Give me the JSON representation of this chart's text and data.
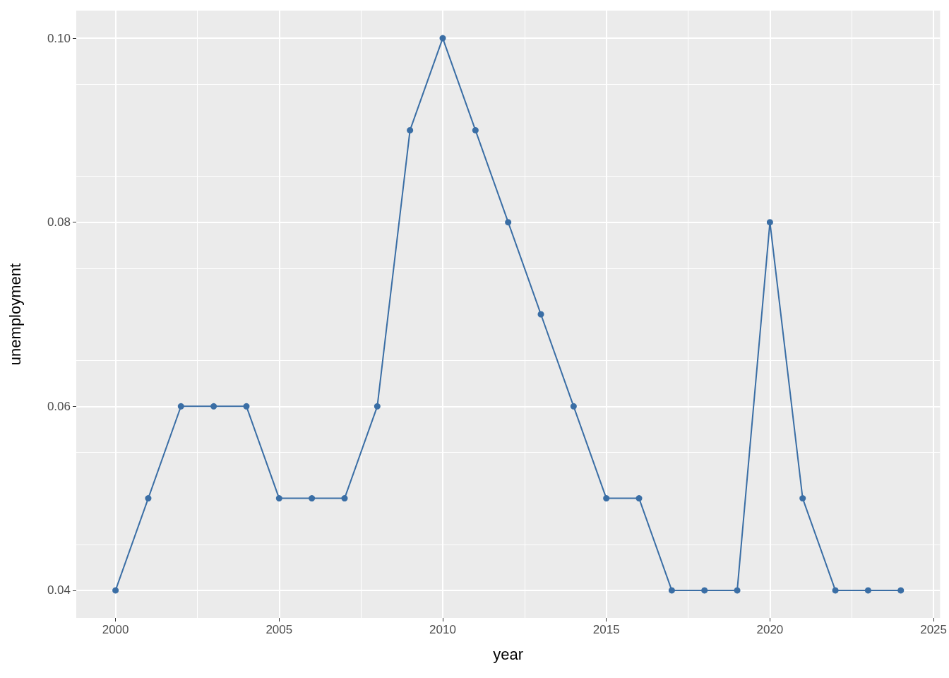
{
  "chart_data": {
    "type": "line",
    "xlabel": "year",
    "ylabel": "unemployment",
    "x": [
      2000,
      2001,
      2002,
      2003,
      2004,
      2005,
      2006,
      2007,
      2008,
      2009,
      2010,
      2011,
      2012,
      2013,
      2014,
      2015,
      2016,
      2017,
      2018,
      2019,
      2020,
      2021,
      2022,
      2023,
      2024
    ],
    "series": [
      {
        "color": "#3a6ea5",
        "values": [
          0.04,
          0.05,
          0.06,
          0.06,
          0.06,
          0.05,
          0.05,
          0.05,
          0.06,
          0.09,
          0.1,
          0.09,
          0.08,
          0.07,
          0.06,
          0.05,
          0.05,
          0.04,
          0.04,
          0.04,
          0.08,
          0.05,
          0.04,
          0.04,
          0.04
        ]
      }
    ],
    "xlim": [
      1998.8,
      2025.2
    ],
    "xticks": [
      2000,
      2005,
      2010,
      2015,
      2020,
      2025
    ],
    "ylim": [
      0.037,
      0.103
    ],
    "yticks": [
      0.04,
      0.06,
      0.08,
      {
        "value": 0.1,
        "label": "0.10"
      }
    ],
    "grid": true,
    "marker": "circle",
    "line_style": "solid"
  }
}
